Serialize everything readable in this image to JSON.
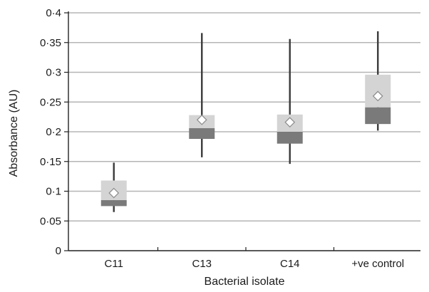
{
  "chart_data": {
    "type": "boxplot",
    "xlabel": "Bacterial isolate",
    "ylabel": "Absorbance (AU)",
    "ylim": [
      0,
      0.4
    ],
    "yticks": [
      "0",
      "0·05",
      "0·1",
      "0·15",
      "0·2",
      "0·25",
      "0·3",
      "0·35",
      "0·4"
    ],
    "ytick_values": [
      0,
      0.05,
      0.1,
      0.15,
      0.2,
      0.25,
      0.3,
      0.35,
      0.4
    ],
    "grid": true,
    "categories": [
      "C11",
      "C13",
      "C14",
      "+ve control"
    ],
    "boxes": [
      {
        "min": 0.065,
        "q1": 0.075,
        "median": 0.085,
        "q3": 0.118,
        "max": 0.148,
        "mean": 0.097
      },
      {
        "min": 0.157,
        "q1": 0.188,
        "median": 0.206,
        "q3": 0.228,
        "max": 0.366,
        "mean": 0.22
      },
      {
        "min": 0.146,
        "q1": 0.18,
        "median": 0.2,
        "q3": 0.229,
        "max": 0.356,
        "mean": 0.216
      },
      {
        "min": 0.202,
        "q1": 0.213,
        "median": 0.241,
        "q3": 0.296,
        "max": 0.369,
        "mean": 0.26
      }
    ],
    "colors": {
      "upper_box": "#d4d4d4",
      "lower_box": "#7a7a7a",
      "whisker": "#3a3a3a",
      "grid": "#b5b5b5",
      "axis": "#222222",
      "mean_marker": "#ffffff"
    }
  }
}
